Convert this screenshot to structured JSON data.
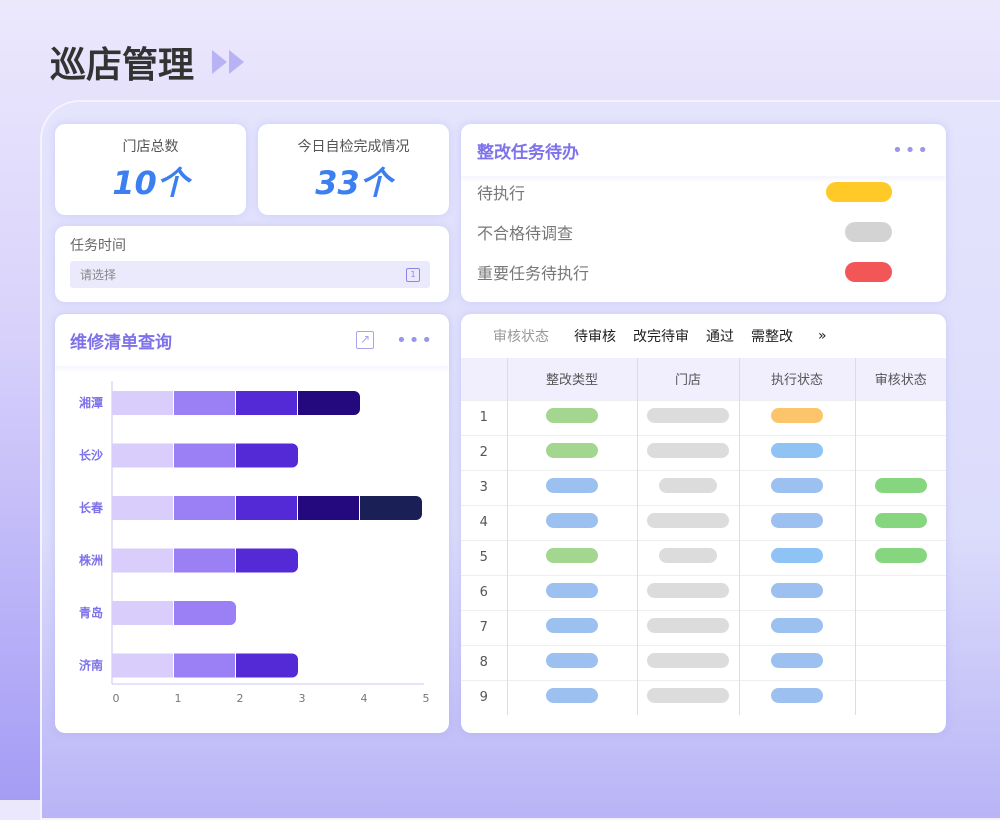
{
  "page_title": "巡店管理",
  "stats": [
    {
      "label": "门店总数",
      "value": "10个"
    },
    {
      "label": "今日自检完成情况",
      "value": "33个"
    }
  ],
  "task_time": {
    "label": "任务时间",
    "placeholder": "请选择"
  },
  "todo": {
    "title": "整改任务待办",
    "items": [
      {
        "label": "待执行",
        "color": "#ffca28"
      },
      {
        "label": "不合格待调查",
        "color": "#d3d3d3"
      },
      {
        "label": "重要任务待执行",
        "color": "#f25656"
      }
    ]
  },
  "repair": {
    "title": "维修清单查询"
  },
  "chart_data": {
    "type": "bar",
    "orientation": "horizontal",
    "stacked": true,
    "categories": [
      "湘潭",
      "长沙",
      "长春",
      "株洲",
      "青岛",
      "济南"
    ],
    "series": [
      {
        "values": [
          1,
          1,
          1,
          1,
          1,
          1
        ],
        "color": "#d8cdfb"
      },
      {
        "values": [
          1,
          1,
          1,
          1,
          1,
          1
        ],
        "color": "#9b7ff5"
      },
      {
        "values": [
          1,
          1,
          1,
          1,
          0,
          1
        ],
        "color": "#5429d6"
      },
      {
        "values": [
          1,
          0,
          1,
          0,
          0,
          0
        ],
        "color": "#23087e"
      },
      {
        "values": [
          0,
          0,
          1,
          0,
          0,
          0
        ],
        "color": "#1a1f55"
      }
    ],
    "xlim": [
      0,
      5
    ],
    "xticks": [
      "0",
      "1",
      "2",
      "3",
      "4",
      "5"
    ]
  },
  "audit": {
    "filter_label": "审核状态",
    "filters": [
      "待审核",
      "改完待审",
      "通过",
      "需整改"
    ],
    "more": "»",
    "columns": [
      "",
      "整改类型",
      "门店",
      "执行状态",
      "审核状态"
    ],
    "rows": [
      {
        "n": "1",
        "type": "#a3d68f",
        "store": "long",
        "exec": "#fdc56b",
        "audit": ""
      },
      {
        "n": "2",
        "type": "#a3d68f",
        "store": "long",
        "exec": "#8fc3f5",
        "audit": ""
      },
      {
        "n": "3",
        "type": "#9cc1f0",
        "store": "short",
        "exec": "#9cc1f0",
        "audit": "#86d67f"
      },
      {
        "n": "4",
        "type": "#9cc1f0",
        "store": "long",
        "exec": "#9cc1f0",
        "audit": "#86d67f"
      },
      {
        "n": "5",
        "type": "#a3d68f",
        "store": "short",
        "exec": "#8fc3f5",
        "audit": "#86d67f"
      },
      {
        "n": "6",
        "type": "#9cc1f0",
        "store": "long",
        "exec": "#9cc1f0",
        "audit": ""
      },
      {
        "n": "7",
        "type": "#9cc1f0",
        "store": "long",
        "exec": "#9cc1f0",
        "audit": ""
      },
      {
        "n": "8",
        "type": "#9cc1f0",
        "store": "long",
        "exec": "#9cc1f0",
        "audit": ""
      },
      {
        "n": "9",
        "type": "#9cc1f0",
        "store": "long",
        "exec": "#9cc1f0",
        "audit": ""
      }
    ]
  }
}
